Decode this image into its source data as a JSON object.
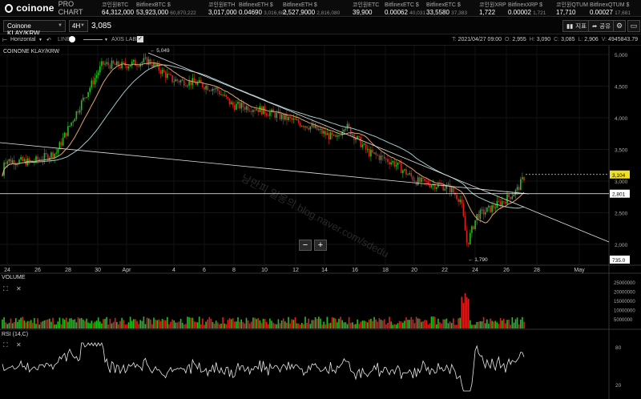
{
  "app": {
    "brand": "coinone",
    "sub": "PRO CHART"
  },
  "tickers": [
    {
      "name": "코인원BTC",
      "price": "64,312,000",
      "sub": ""
    },
    {
      "name": "BitfinexBTC $",
      "price": "53,923,000",
      "sub": "60,870,222"
    },
    {
      "name": "코인원ETH",
      "price": "3,017,000",
      "sub": ""
    },
    {
      "name": "BitfinexETH $",
      "price": "0.04690",
      "sub": "3,016,682"
    },
    {
      "name": "BitfinexETH $",
      "price": "2,527,9000",
      "sub": "2,816,080"
    },
    {
      "name": "코인원ETC",
      "price": "39,900",
      "sub": ""
    },
    {
      "name": "BitfinexETC $",
      "price": "0.00062",
      "sub": "40,031"
    },
    {
      "name": "BitfinexETC $",
      "price": "33,5580",
      "sub": "37,383"
    },
    {
      "name": "코인원XRP",
      "price": "1,722",
      "sub": ""
    },
    {
      "name": "BitfinexXRP $",
      "price": "0.00002",
      "sub": "1,721"
    },
    {
      "name": "코인원QTUM",
      "price": "17,710",
      "sub": ""
    },
    {
      "name": "BitfinexQTUM $",
      "price": "0.00027",
      "sub": "17,681"
    }
  ],
  "toolbar": {
    "symbol": "Coinone KLAY/KRW",
    "timeframe": "4H",
    "current_price": "3,085",
    "indicator_label": "지표",
    "share_label": "공유"
  },
  "drawing": {
    "tool": "Horizontal",
    "line_label": "LINE",
    "axis_label": "AXIS LABEL"
  },
  "ohlc": {
    "time_key": "T:",
    "time": "2021/04/27 09:00",
    "open_key": "O:",
    "open": "2,955",
    "high_key": "H:",
    "high": "3,090",
    "close_key": "C:",
    "close": "3,085",
    "low_key": "L:",
    "low": "2,906",
    "vol_key": "V:",
    "volume": "4945843.79"
  },
  "chart_label": "COINONE KLAY/KRW",
  "watermark": "낭만피 일몽의 blog.naver.com/sdedu",
  "price_axis": [
    "5,000",
    "4,500",
    "4,000",
    "3,500",
    "3,000",
    "2,500",
    "2,000"
  ],
  "price_tags": {
    "current": "3,104",
    "hline": "2,801",
    "bottom": "735.0"
  },
  "annotations": {
    "high": "5,049",
    "low": "1,790"
  },
  "date_axis": [
    "24",
    "26",
    "28",
    "30",
    "Apr",
    "4",
    "6",
    "8",
    "10",
    "12",
    "14",
    "16",
    "18",
    "20",
    "22",
    "24",
    "26",
    "28",
    "May"
  ],
  "zoom": {
    "minus": "−",
    "plus": "+"
  },
  "volume_pane": {
    "label": "VOLUME",
    "ticks": [
      "25000000",
      "20000000",
      "15000000",
      "10000000",
      "5000000"
    ]
  },
  "rsi_pane": {
    "label": "RSI (14,C)",
    "ticks": [
      "80",
      "20"
    ]
  },
  "colors": {
    "up": "#20c020",
    "down": "#e02020",
    "ma_long": "#9ec8c8",
    "ma_short": "#e0a070",
    "trend": "#e0e0e0"
  }
}
